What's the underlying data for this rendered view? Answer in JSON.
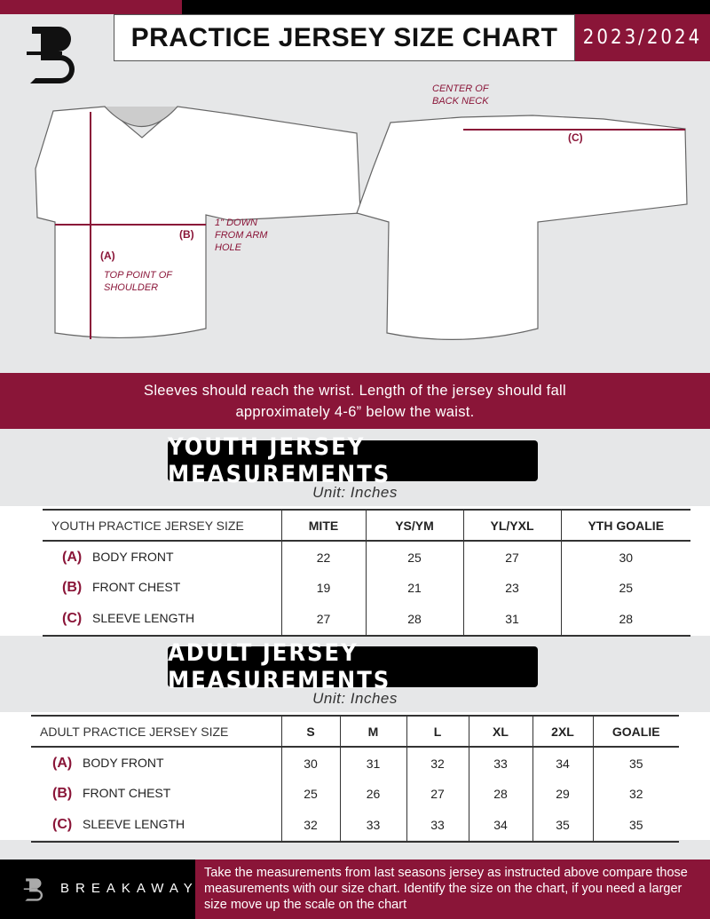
{
  "header": {
    "title": "PRACTICE JERSEY SIZE CHART",
    "season": "2023/2024",
    "logo_letter": "B"
  },
  "diagram": {
    "center_back_neck": "CENTER OF BACK NECK",
    "one_inch_down": "1\" DOWN FROM ARM HOLE",
    "top_point": "TOP POINT OF SHOULDER",
    "label_a": "(A)",
    "label_b": "(B)",
    "label_c": "(C)"
  },
  "banner": {
    "line1": "Sleeves should reach the wrist. Length of the jersey should fall",
    "line2": "approximately 4-6” below the waist."
  },
  "youth": {
    "title": "YOUTH JERSEY MEASUREMENTS",
    "unit": "Unit: Inches",
    "header": [
      "YOUTH PRACTICE JERSEY SIZE",
      "MITE",
      "YS/YM",
      "YL/YXL",
      "YTH GOALIE"
    ],
    "rows": [
      {
        "code": "(A)",
        "label": "BODY FRONT",
        "values": [
          "22",
          "25",
          "27",
          "30"
        ]
      },
      {
        "code": "(B)",
        "label": "FRONT CHEST",
        "values": [
          "19",
          "21",
          "23",
          "25"
        ]
      },
      {
        "code": "(C)",
        "label": "SLEEVE LENGTH",
        "values": [
          "27",
          "28",
          "31",
          "28"
        ]
      }
    ]
  },
  "adult": {
    "title": "ADULT JERSEY MEASUREMENTS",
    "unit": "Unit: Inches",
    "header": [
      "ADULT PRACTICE JERSEY SIZE",
      "S",
      "M",
      "L",
      "XL",
      "2XL",
      "GOALIE"
    ],
    "rows": [
      {
        "code": "(A)",
        "label": "BODY FRONT",
        "values": [
          "30",
          "31",
          "32",
          "33",
          "34",
          "35"
        ]
      },
      {
        "code": "(B)",
        "label": "FRONT CHEST",
        "values": [
          "25",
          "26",
          "27",
          "28",
          "29",
          "32"
        ]
      },
      {
        "code": "(C)",
        "label": "SLEEVE LENGTH",
        "values": [
          "32",
          "33",
          "33",
          "34",
          "35",
          "35"
        ]
      }
    ]
  },
  "footer": {
    "brand": "BREAKAWAY",
    "text": "Take the measurements from last seasons jersey as instructed above compare those measurements  with our size chart. Identify the size on the chart, if you need a larger size move up the scale on the chart"
  },
  "colors": {
    "accent": "#8a1538",
    "background": "#e6e7e8"
  }
}
